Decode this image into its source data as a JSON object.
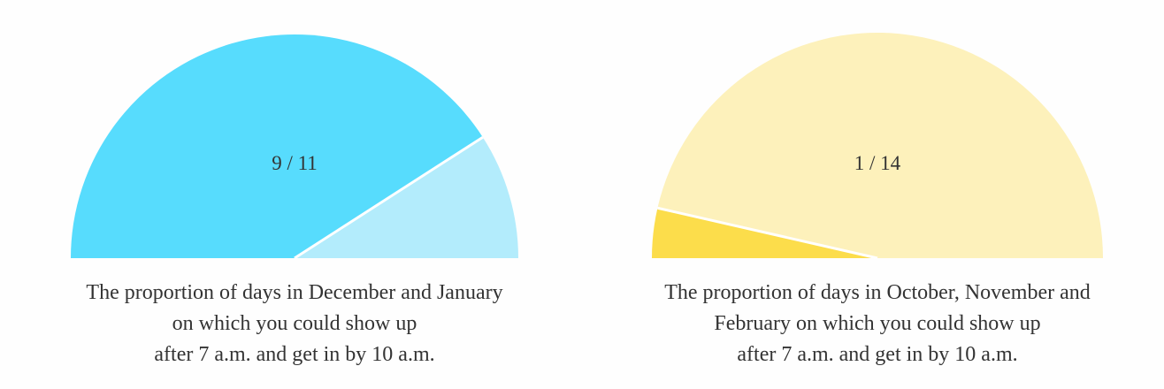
{
  "chart_data": [
    {
      "type": "gauge",
      "value": 9,
      "total": 11,
      "value_label": "9 / 11",
      "colors": [
        "#57dcfd",
        "#b3ecfc"
      ],
      "caption": [
        "The proportion of days in December and January",
        "on which you could show up",
        "after 7 a.m. and get in by 10 a.m."
      ]
    },
    {
      "type": "gauge",
      "value": 1,
      "total": 14,
      "value_label": "1 / 14",
      "colors": [
        "#fcdd4b",
        "#fdf1bb"
      ],
      "caption": [
        "The proportion of days in October, November and",
        "February on which you could show up",
        "after 7 a.m. and get in by 10 a.m."
      ]
    }
  ]
}
